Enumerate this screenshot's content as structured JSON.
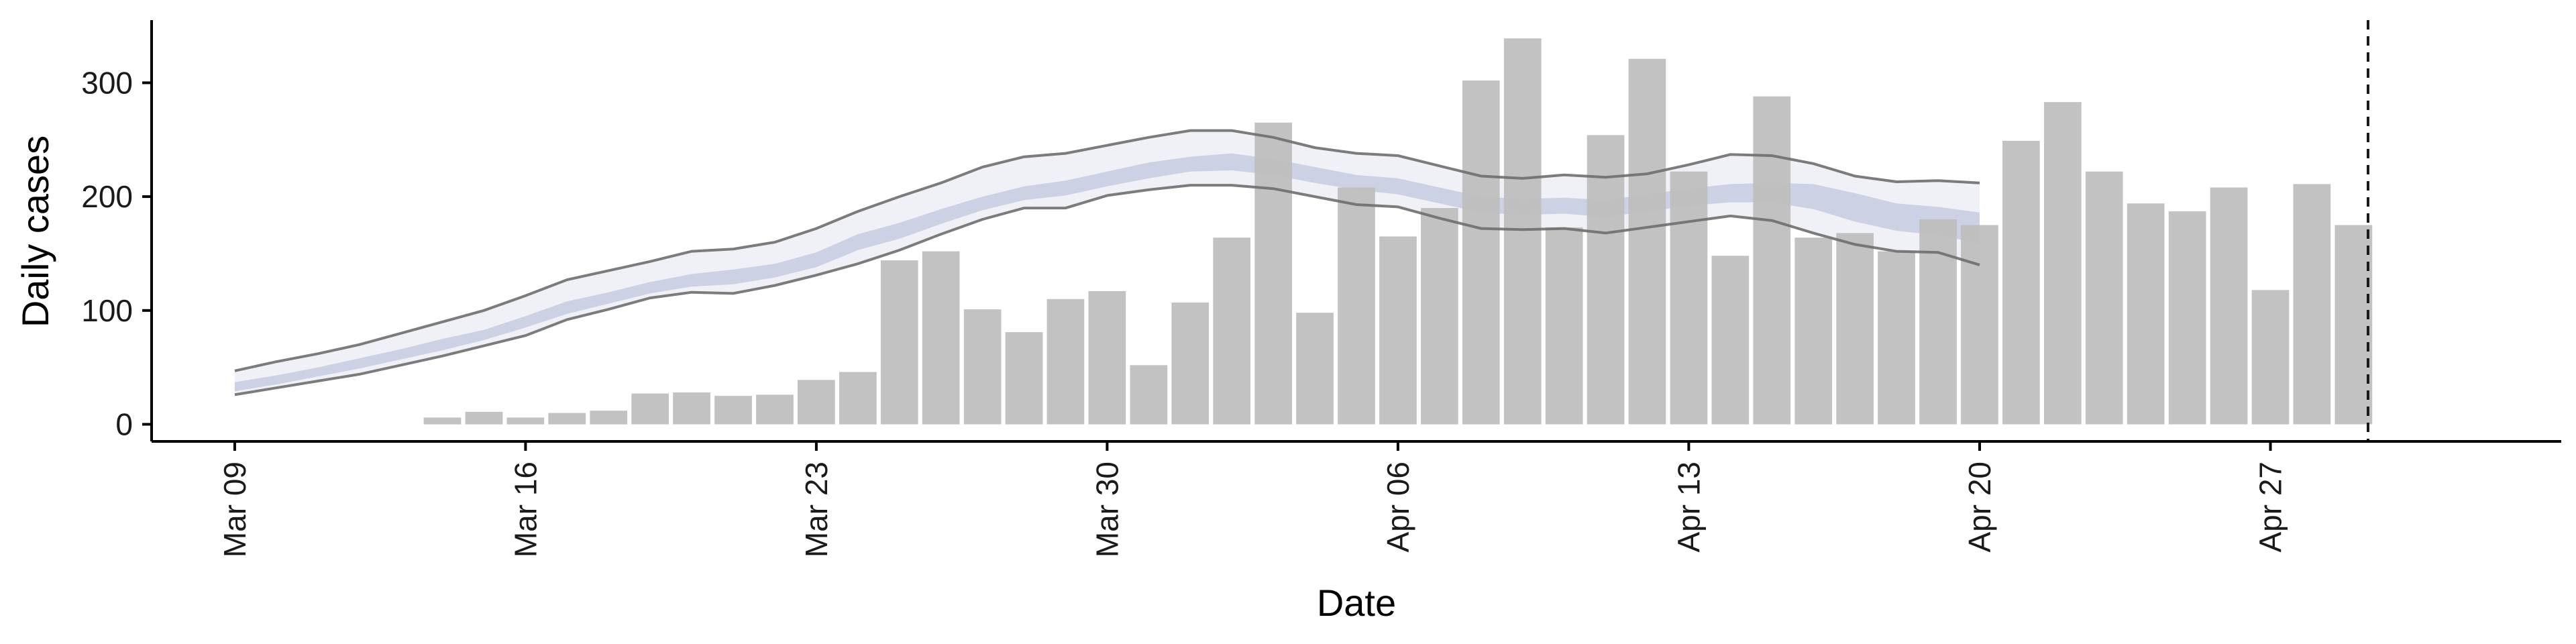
{
  "chart_data": {
    "type": "bar",
    "title": "",
    "xlabel": "Date",
    "ylabel": "Daily cases",
    "ylim": [
      -15,
      355
    ],
    "y_ticks": [
      0,
      100,
      200,
      300
    ],
    "x_range": [
      "2020-03-07",
      "2020-05-04"
    ],
    "x_ticks": [
      {
        "date": "2020-03-09",
        "label": "Mar 09"
      },
      {
        "date": "2020-03-16",
        "label": "Mar 16"
      },
      {
        "date": "2020-03-23",
        "label": "Mar 23"
      },
      {
        "date": "2020-03-30",
        "label": "Mar 30"
      },
      {
        "date": "2020-04-06",
        "label": "Apr 06"
      },
      {
        "date": "2020-04-13",
        "label": "Apr 13"
      },
      {
        "date": "2020-04-20",
        "label": "Apr 20"
      },
      {
        "date": "2020-04-27",
        "label": "Apr 27"
      }
    ],
    "grid": false,
    "legend": "none",
    "colors": {
      "bars": "#bdbdbd",
      "band_outer": "#eceef5",
      "band_inner": "#c5cbe0",
      "band_edge": "#6e6e6e",
      "reference_line": "#1a1a1a"
    },
    "bars": {
      "dates": [
        "2020-03-14",
        "2020-03-15",
        "2020-03-16",
        "2020-03-17",
        "2020-03-18",
        "2020-03-19",
        "2020-03-20",
        "2020-03-21",
        "2020-03-22",
        "2020-03-23",
        "2020-03-24",
        "2020-03-25",
        "2020-03-26",
        "2020-03-27",
        "2020-03-28",
        "2020-03-29",
        "2020-03-30",
        "2020-03-31",
        "2020-04-01",
        "2020-04-02",
        "2020-04-03",
        "2020-04-04",
        "2020-04-05",
        "2020-04-06",
        "2020-04-07",
        "2020-04-08",
        "2020-04-09",
        "2020-04-10",
        "2020-04-11",
        "2020-04-12",
        "2020-04-13",
        "2020-04-14",
        "2020-04-15",
        "2020-04-16",
        "2020-04-17",
        "2020-04-18",
        "2020-04-19",
        "2020-04-20",
        "2020-04-21",
        "2020-04-22",
        "2020-04-23",
        "2020-04-24",
        "2020-04-25",
        "2020-04-26",
        "2020-04-27",
        "2020-04-28",
        "2020-04-29"
      ],
      "values": [
        6,
        11,
        6,
        10,
        12,
        27,
        28,
        25,
        26,
        39,
        46,
        144,
        152,
        101,
        81,
        110,
        117,
        52,
        107,
        164,
        265,
        98,
        208,
        165,
        190,
        302,
        339,
        173,
        254,
        321,
        222,
        148,
        288,
        164,
        168,
        152,
        180,
        175,
        249,
        283,
        222,
        194,
        187,
        208,
        118,
        211,
        175
      ]
    },
    "band": {
      "dates": [
        "2020-03-09",
        "2020-03-10",
        "2020-03-11",
        "2020-03-12",
        "2020-03-13",
        "2020-03-14",
        "2020-03-15",
        "2020-03-16",
        "2020-03-17",
        "2020-03-18",
        "2020-03-19",
        "2020-03-20",
        "2020-03-21",
        "2020-03-22",
        "2020-03-23",
        "2020-03-24",
        "2020-03-25",
        "2020-03-26",
        "2020-03-27",
        "2020-03-28",
        "2020-03-29",
        "2020-03-30",
        "2020-03-31",
        "2020-04-01",
        "2020-04-02",
        "2020-04-03",
        "2020-04-04",
        "2020-04-05",
        "2020-04-06",
        "2020-04-07",
        "2020-04-08",
        "2020-04-09",
        "2020-04-10",
        "2020-04-11",
        "2020-04-12",
        "2020-04-13",
        "2020-04-14",
        "2020-04-15",
        "2020-04-16",
        "2020-04-17",
        "2020-04-18",
        "2020-04-19",
        "2020-04-20"
      ],
      "upper": [
        47,
        55,
        62,
        70,
        80,
        90,
        100,
        113,
        127,
        135,
        143,
        152,
        154,
        160,
        172,
        187,
        200,
        212,
        226,
        235,
        238,
        245,
        252,
        258,
        258,
        252,
        243,
        238,
        236,
        227,
        218,
        216,
        219,
        217,
        220,
        228,
        237,
        236,
        229,
        218,
        213,
        214,
        212
      ],
      "lower": [
        26,
        32,
        38,
        44,
        52,
        60,
        69,
        78,
        92,
        101,
        111,
        116,
        115,
        122,
        131,
        141,
        153,
        167,
        180,
        190,
        190,
        201,
        206,
        210,
        210,
        207,
        200,
        193,
        191,
        181,
        172,
        171,
        172,
        168,
        173,
        178,
        183,
        179,
        168,
        158,
        152,
        151,
        140
      ],
      "inner_upper": [
        37,
        43,
        50,
        58,
        66,
        75,
        83,
        95,
        108,
        116,
        125,
        132,
        136,
        141,
        151,
        167,
        177,
        189,
        200,
        209,
        214,
        222,
        230,
        235,
        238,
        233,
        226,
        219,
        216,
        208,
        200,
        198,
        199,
        197,
        202,
        207,
        211,
        212,
        211,
        203,
        194,
        191,
        186
      ],
      "inner_lower": [
        29,
        35,
        42,
        49,
        57,
        65,
        74,
        85,
        97,
        106,
        115,
        121,
        123,
        129,
        138,
        153,
        163,
        176,
        188,
        197,
        201,
        209,
        216,
        222,
        223,
        219,
        212,
        206,
        202,
        194,
        186,
        184,
        185,
        182,
        187,
        192,
        195,
        195,
        189,
        178,
        170,
        166,
        159
      ]
    },
    "reference_line": {
      "date": "2020-04-29",
      "value": 175,
      "style": "dashed"
    }
  }
}
